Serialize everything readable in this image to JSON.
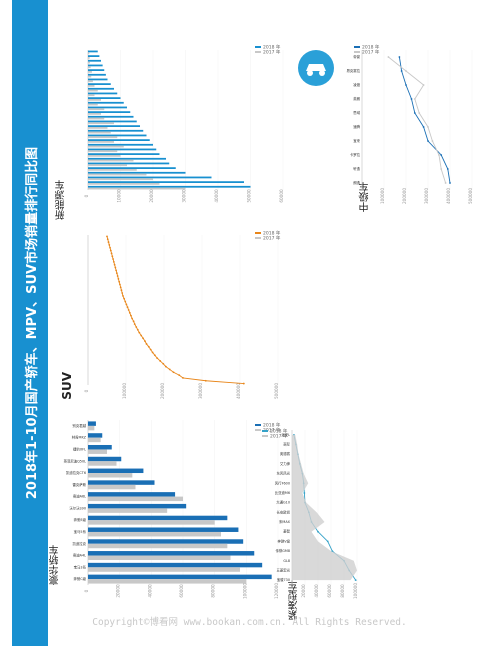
{
  "page_title": "2018年1-10月国产轿车、MPV、SUV市场销量排行同比图",
  "copyright": "Copyright©博看网 www.bookan.com.cn. All Rights Reserved.",
  "colors": {
    "title_bg": "#1890d0",
    "series_2018": "#1a6fb5",
    "series_2017": "#c8c8c8",
    "suv_2018": "#e8861a",
    "mpv_2018": "#35a2c8",
    "ev_2018": "#1890d0"
  },
  "icons": {
    "ev_badge": "electric-car-plug-icon"
  },
  "panels": {
    "luxury": {
      "label": "豪华轿车"
    },
    "suv": {
      "label": "SUV"
    },
    "mpv": {
      "label": "紧凑型车"
    },
    "ev": {
      "label": "新能源车"
    },
    "midsize": {
      "label": "中级车"
    }
  },
  "legend": {
    "y2018": "2018 年",
    "y2017": "2017 年"
  },
  "chart_data": [
    {
      "id": "luxury",
      "type": "bar",
      "title": "豪华轿车",
      "ylim": [
        0,
        120000
      ],
      "yticks": [
        0,
        20000,
        40000,
        60000,
        80000,
        100000,
        120000
      ],
      "categories": [
        "奔驰C级",
        "宝马3系",
        "奥迪A4L",
        "凯迪拉克",
        "宝马5系",
        "奔驰E级",
        "沃尔沃S90",
        "奥迪A6L",
        "雷克萨斯",
        "凯迪拉克CT6",
        "英菲尼迪Q50L",
        "捷豹XFL",
        "林肯MKZ",
        "别克君越"
      ],
      "series": [
        {
          "name": "2018 年",
          "values": [
            116000,
            110000,
            105000,
            98000,
            95000,
            88000,
            62000,
            55000,
            42000,
            35000,
            21000,
            15000,
            9000,
            5000
          ]
        },
        {
          "name": "2017 年",
          "values": [
            100000,
            96000,
            90000,
            88000,
            84000,
            80000,
            50000,
            60000,
            30000,
            28000,
            18000,
            12000,
            8000,
            4000
          ]
        }
      ]
    },
    {
      "id": "suv",
      "type": "line",
      "title": "SUV",
      "ylim": [
        0,
        500000
      ],
      "yticks": [
        0,
        100000,
        200000,
        300000,
        400000,
        500000
      ],
      "series": [
        {
          "name": "2018 年",
          "values": [
            410000,
            310000,
            250000,
            240000,
            225000,
            215000,
            205000,
            198000,
            190000,
            182000,
            176000,
            170000,
            165000,
            160000,
            154000,
            150000,
            145000,
            140000,
            135000,
            131000,
            127000,
            123000,
            120000,
            116000,
            113000,
            110000,
            107000,
            104000,
            101000,
            98000,
            95000,
            92000,
            90000,
            88000,
            86000,
            84000,
            82000,
            80000,
            78000,
            76000,
            74000,
            72000,
            70000,
            68000,
            66000,
            64000,
            62000,
            60000,
            58000,
            56000,
            54000,
            52000,
            50000
          ]
        }
      ]
    },
    {
      "id": "mpv",
      "type": "area",
      "title": "紧凑型车",
      "ylim": [
        0,
        100000
      ],
      "yticks": [
        0,
        20000,
        40000,
        60000,
        80000,
        100000
      ],
      "categories": [
        "宝骏730",
        "五菱宏光",
        "GL8",
        "传祺GM8",
        "奔驰V级",
        "菱智",
        "宋MAX",
        "长安欧尚",
        "大通G10",
        "比亚迪M6",
        "风行F600",
        "东风风光",
        "艾力绅",
        "奥德赛",
        "嘉际",
        "途安L"
      ],
      "series": [
        {
          "name": "2018 年",
          "values": [
            98000,
            88000,
            80000,
            62000,
            55000,
            40000,
            30000,
            26000,
            20000,
            19000,
            18000,
            16000,
            12000,
            9000,
            6000,
            3000
          ]
        },
        {
          "name": "2017 年",
          "values": [
            90000,
            100000,
            95000,
            60000,
            40000,
            30000,
            50000,
            38000,
            22000,
            16000,
            25000,
            18000,
            14000,
            10000,
            8000,
            5000
          ]
        }
      ]
    },
    {
      "id": "ev",
      "type": "bar",
      "title": "新能源车",
      "ylim": [
        0,
        60000
      ],
      "yticks": [
        0,
        10000,
        20000,
        30000,
        40000,
        50000,
        60000
      ],
      "series": [
        {
          "name": "2018 年",
          "values": [
            50000,
            48000,
            38000,
            30000,
            27000,
            25000,
            24000,
            22000,
            21000,
            20000,
            19000,
            18000,
            17000,
            16000,
            15000,
            14000,
            13000,
            12000,
            11000,
            10000,
            9000,
            8000,
            7000,
            6000,
            5500,
            5000,
            4500,
            4000,
            3500,
            3000
          ]
        },
        {
          "name": "2017 年",
          "values": [
            30000,
            22000,
            20000,
            18000,
            15000,
            12000,
            14000,
            10000,
            9000,
            11000,
            8000,
            9000,
            7000,
            6000,
            8000,
            5000,
            4000,
            5000,
            3000,
            4000,
            2000,
            3000,
            2000,
            1500,
            1000,
            1200,
            800,
            600,
            500,
            400
          ]
        }
      ]
    },
    {
      "id": "midsize",
      "type": "line",
      "title": "中级车",
      "ylim": [
        0,
        500000
      ],
      "yticks": [
        0,
        100000,
        200000,
        300000,
        400000,
        500000
      ],
      "categories": [
        "朗逸",
        "轩逸",
        "卡罗拉",
        "宝来",
        "速腾",
        "思域",
        "英朗",
        "凌渡",
        "昂克赛拉",
        "帝豪"
      ],
      "series": [
        {
          "name": "2018 年",
          "values": [
            400000,
            390000,
            360000,
            300000,
            280000,
            240000,
            225000,
            200000,
            180000,
            170000
          ]
        },
        {
          "name": "2017 年",
          "values": [
            380000,
            360000,
            350000,
            320000,
            300000,
            260000,
            240000,
            280000,
            200000,
            120000
          ]
        }
      ]
    }
  ]
}
